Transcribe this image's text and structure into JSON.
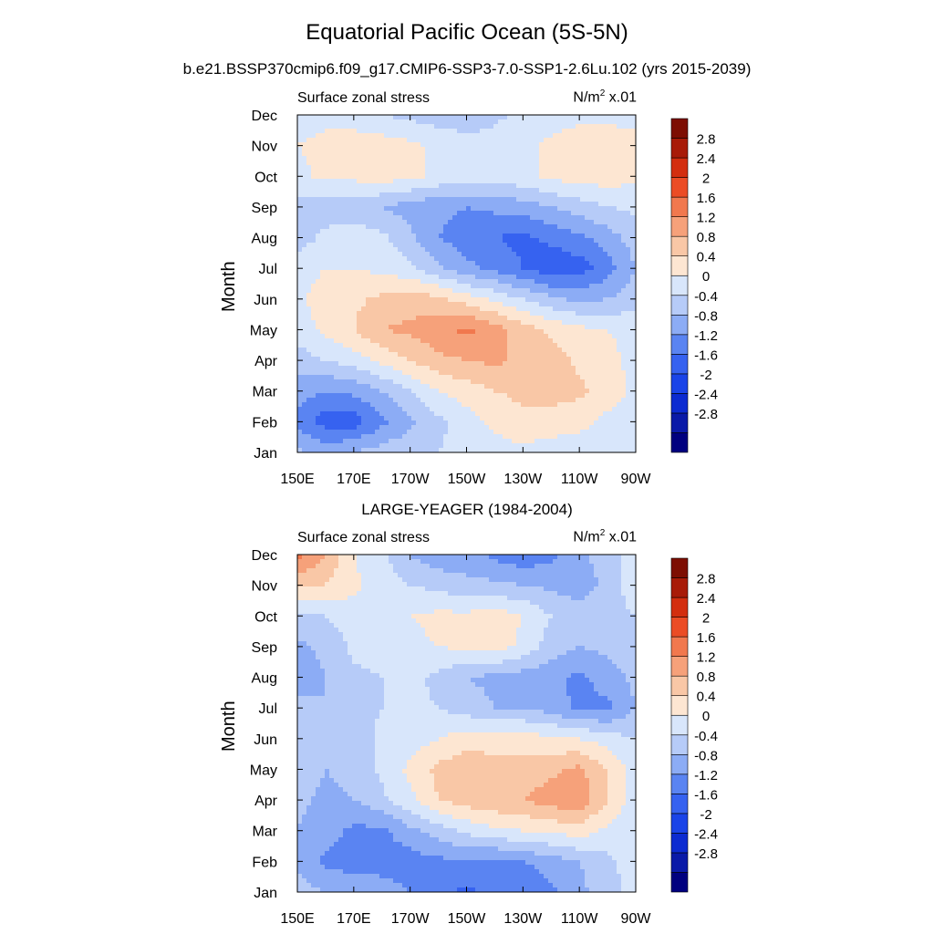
{
  "title": "Equatorial Pacific Ocean (5S-5N)",
  "subtitle": "b.e21.BSSP370cmip6.f09_g17.CMIP6-SSP3-7.0-SSP1-2.6Lu.102 (yrs 2015-2039)",
  "colors": {
    "levels": [
      -3.2,
      -2.8,
      -2.4,
      -2.0,
      -1.6,
      -1.2,
      -0.8,
      -0.4,
      0,
      0.4,
      0.8,
      1.2,
      1.6,
      2.0,
      2.4,
      2.8,
      3.2
    ],
    "fills": [
      "#00007f",
      "#0a1aa8",
      "#0c2bd1",
      "#1a44e8",
      "#3662f0",
      "#5a84f2",
      "#8cacf5",
      "#b6cbf8",
      "#d8e6fb",
      "#fde6d2",
      "#f9c7a6",
      "#f6a17a",
      "#f1784e",
      "#eb4c25",
      "#d32e0f",
      "#a81b08",
      "#7d0e02"
    ],
    "background": "#ffffff",
    "axis": "#000000"
  },
  "chart_data": [
    {
      "type": "heatmap",
      "panel_title": "",
      "left_label": "Surface zonal stress",
      "right_label": {
        "base": "N/m",
        "sup": "2",
        "suffix": " x.01"
      },
      "ylabel": "Month",
      "x_tick_labels": [
        "150E",
        "170E",
        "170W",
        "150W",
        "130W",
        "110W",
        "90W"
      ],
      "y_tick_labels": [
        "Jan",
        "Feb",
        "Mar",
        "Apr",
        "May",
        "Jun",
        "Jul",
        "Aug",
        "Sep",
        "Oct",
        "Nov",
        "Dec"
      ],
      "colorbar_labels": [
        "2.8",
        "2.4",
        "2",
        "1.6",
        "1.2",
        "0.8",
        "0.4",
        "0",
        "-0.4",
        "-0.8",
        "-1.2",
        "-1.6",
        "-2",
        "-2.4",
        "-2.8"
      ],
      "x_longitude_east": [
        150,
        160,
        170,
        180,
        190,
        200,
        210,
        220,
        230,
        240,
        250,
        260,
        270
      ],
      "grid": [
        [
          -0.3,
          -0.5,
          -0.4,
          -0.2,
          -0.1,
          0.0,
          0.1,
          0.2,
          0.3,
          0.2,
          0.2,
          0.2,
          0.3
        ],
        [
          -1.0,
          -1.4,
          -1.4,
          -0.9,
          -0.5,
          -0.1,
          0.2,
          0.5,
          0.7,
          0.6,
          0.5,
          0.3,
          0.2
        ],
        [
          -0.6,
          -0.8,
          -0.7,
          -0.4,
          0.0,
          0.4,
          0.6,
          0.8,
          0.9,
          1.0,
          0.9,
          0.6,
          0.3
        ],
        [
          -0.2,
          0.0,
          0.2,
          0.5,
          0.8,
          1.1,
          1.2,
          1.3,
          1.1,
          1.0,
          0.7,
          0.5,
          0.3
        ],
        [
          0.2,
          0.5,
          0.8,
          1.2,
          1.3,
          1.5,
          1.7,
          1.4,
          1.0,
          0.7,
          0.5,
          0.4,
          0.3
        ],
        [
          0.3,
          0.6,
          0.7,
          0.9,
          1.0,
          0.9,
          0.6,
          0.3,
          0.0,
          -0.3,
          -0.5,
          -0.4,
          -0.2
        ],
        [
          0.2,
          0.4,
          0.4,
          0.3,
          0.1,
          -0.3,
          -0.7,
          -0.9,
          -1.2,
          -1.5,
          -1.4,
          -1.0,
          -0.4
        ],
        [
          -0.2,
          0.1,
          0.2,
          0.1,
          -0.3,
          -0.8,
          -1.0,
          -1.2,
          -1.3,
          -1.1,
          -0.9,
          -0.6,
          -0.2
        ],
        [
          -0.1,
          -0.2,
          -0.2,
          -0.4,
          -0.6,
          -0.7,
          -0.8,
          -0.7,
          -0.6,
          -0.4,
          -0.2,
          0.0,
          0.1
        ],
        [
          0.3,
          0.5,
          0.5,
          0.6,
          0.5,
          0.3,
          0.2,
          0.2,
          0.3,
          0.5,
          0.6,
          0.6,
          0.5
        ],
        [
          0.4,
          0.5,
          0.6,
          0.6,
          0.5,
          0.3,
          0.2,
          0.2,
          0.3,
          0.5,
          0.6,
          0.6,
          0.5
        ],
        [
          0.2,
          0.3,
          0.2,
          0.0,
          -0.1,
          -0.2,
          -0.3,
          -0.1,
          0.1,
          0.2,
          0.3,
          0.3,
          0.3
        ]
      ]
    },
    {
      "type": "heatmap",
      "panel_title": "LARGE-YEAGER (1984-2004)",
      "left_label": "Surface zonal stress",
      "right_label": {
        "base": "N/m",
        "sup": "2",
        "suffix": " x.01"
      },
      "ylabel": "Month",
      "x_tick_labels": [
        "150E",
        "170E",
        "170W",
        "150W",
        "130W",
        "110W",
        "90W"
      ],
      "y_tick_labels": [
        "Jan",
        "Feb",
        "Mar",
        "Apr",
        "May",
        "Jun",
        "Jul",
        "Aug",
        "Sep",
        "Oct",
        "Nov",
        "Dec"
      ],
      "colorbar_labels": [
        "2.8",
        "2.4",
        "2",
        "1.6",
        "1.2",
        "0.8",
        "0.4",
        "0",
        "-0.4",
        "-0.8",
        "-1.2",
        "-1.6",
        "-2",
        "-2.4",
        "-2.8"
      ],
      "x_longitude_east": [
        150,
        160,
        170,
        180,
        190,
        200,
        210,
        220,
        230,
        240,
        250,
        260,
        270
      ],
      "grid": [
        [
          -0.2,
          -0.4,
          -0.5,
          -0.6,
          -0.8,
          -1.1,
          -1.3,
          -1.1,
          -1.2,
          -0.9,
          -0.5,
          -0.2,
          0.2
        ],
        [
          -0.5,
          -0.9,
          -1.0,
          -1.0,
          -1.0,
          -0.9,
          -0.8,
          -0.9,
          -0.8,
          -0.6,
          -0.4,
          -0.1,
          0.2
        ],
        [
          -0.4,
          -0.6,
          -0.9,
          -0.9,
          -0.5,
          -0.2,
          0.1,
          0.3,
          0.4,
          0.5,
          0.6,
          0.3,
          0.1
        ],
        [
          -0.3,
          -0.5,
          -0.4,
          -0.1,
          0.3,
          0.8,
          1.0,
          1.1,
          1.2,
          1.4,
          1.5,
          0.8,
          0.2
        ],
        [
          -0.2,
          -0.4,
          -0.3,
          0.1,
          0.5,
          0.9,
          1.1,
          1.0,
          1.0,
          1.1,
          1.3,
          0.8,
          0.2
        ],
        [
          -0.2,
          -0.3,
          -0.2,
          0.1,
          0.2,
          0.4,
          0.6,
          0.6,
          0.6,
          0.5,
          0.4,
          0.2,
          0.0
        ],
        [
          -0.3,
          -0.4,
          -0.2,
          0.0,
          0.1,
          0.0,
          -0.2,
          -0.4,
          -0.4,
          -0.6,
          -0.9,
          -0.9,
          -0.4
        ],
        [
          -0.6,
          -0.4,
          -0.1,
          0.0,
          0.1,
          -0.1,
          -0.4,
          -0.5,
          -0.6,
          -0.7,
          -0.9,
          -0.6,
          -0.3
        ],
        [
          -0.5,
          -0.3,
          0.1,
          0.2,
          0.3,
          0.4,
          0.5,
          0.6,
          0.3,
          -0.2,
          -0.4,
          -0.3,
          -0.1
        ],
        [
          -0.1,
          0.0,
          0.2,
          0.3,
          0.4,
          0.5,
          0.5,
          0.6,
          0.4,
          0.0,
          -0.2,
          -0.2,
          0.0
        ],
        [
          0.9,
          0.8,
          0.5,
          0.2,
          0.0,
          -0.1,
          -0.3,
          -0.3,
          -0.4,
          -0.5,
          -0.6,
          -0.3,
          0.3
        ],
        [
          1.7,
          1.2,
          0.4,
          0.1,
          -0.4,
          -0.7,
          -0.6,
          -0.9,
          -1.1,
          -0.9,
          -0.5,
          -0.2,
          0.2
        ]
      ]
    }
  ]
}
